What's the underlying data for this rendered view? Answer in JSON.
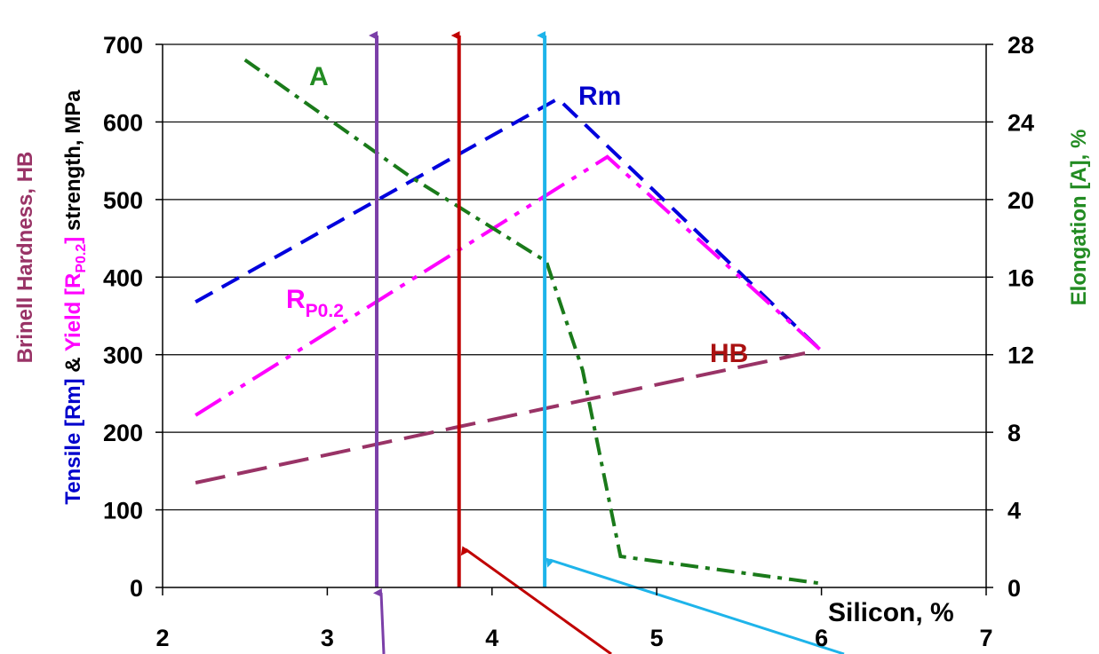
{
  "chart_data": {
    "type": "line",
    "x_axis": {
      "label": "Silicon, %",
      "range": [
        2,
        7
      ],
      "ticks": [
        "2",
        "3",
        "4",
        "5",
        "6",
        "7"
      ]
    },
    "left_axis": {
      "range": [
        0,
        700
      ],
      "ticks": [
        "0",
        "100",
        "200",
        "300",
        "400",
        "500",
        "600",
        "700"
      ],
      "label_parts": [
        {
          "text": "Tensile [Rm]",
          "color": "#0000cc"
        },
        {
          "text": " & ",
          "color": "#000000"
        },
        {
          "text": "Yield [R",
          "color": "#ff00ff"
        },
        {
          "text": "P0.2",
          "color": "#ff00ff",
          "sub": true
        },
        {
          "text": "]",
          "color": "#ff00ff"
        },
        {
          "text": " strength, MPa",
          "color": "#000000"
        }
      ],
      "outer_label": {
        "text": "Brinell Hardness, HB",
        "color": "#993366"
      }
    },
    "right_axis": {
      "label": "Elongation [A], %",
      "label_color": "#228b22",
      "range": [
        0,
        28
      ],
      "ticks": [
        "0",
        "4",
        "8",
        "12",
        "16",
        "20",
        "24",
        "28"
      ]
    },
    "grid": "horizontal",
    "series": [
      {
        "name": "Rm",
        "label_color": "#0000cc",
        "color": "#0000dd",
        "dash": "22,12",
        "axis": "left",
        "points": [
          [
            2.2,
            368
          ],
          [
            4.4,
            630
          ],
          [
            6.0,
            305
          ]
        ]
      },
      {
        "name": "RP0.2",
        "label_main": "R",
        "label_sub": "P0.2",
        "label_color": "#ff00ff",
        "color": "#ff00ff",
        "dash": "34,10,6,10,6,10",
        "axis": "left",
        "points": [
          [
            2.2,
            222
          ],
          [
            4.7,
            555
          ],
          [
            6.0,
            305
          ]
        ]
      },
      {
        "name": "HB",
        "label_color": "#aa1111",
        "color": "#993366",
        "dash": "34,14",
        "axis": "left",
        "points": [
          [
            2.2,
            135
          ],
          [
            5.9,
            302
          ]
        ]
      },
      {
        "name": "A",
        "label_color": "#228b22",
        "color": "#1a7a1a",
        "dash": "20,8,5,8",
        "axis": "right",
        "points": [
          [
            2.5,
            27.2
          ],
          [
            3.5,
            21.2
          ],
          [
            4.33,
            16.8
          ],
          [
            4.55,
            11.2
          ],
          [
            4.78,
            1.6
          ],
          [
            6.0,
            0.2
          ]
        ]
      }
    ],
    "vertical_markers": [
      {
        "x": 3.3,
        "color": "#7b3fa8"
      },
      {
        "x": 3.8,
        "color": "#c00000"
      },
      {
        "x": 4.32,
        "color": "#1eb4ea"
      }
    ]
  }
}
